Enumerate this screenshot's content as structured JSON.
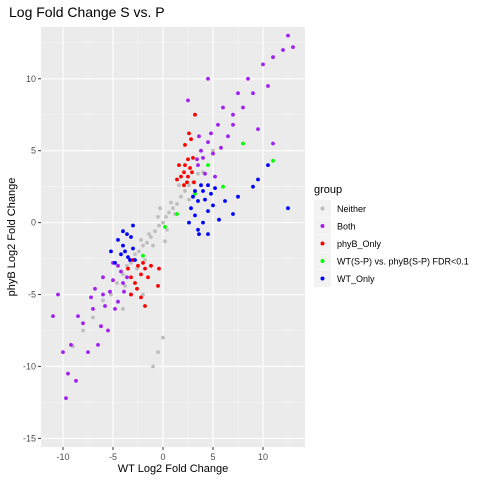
{
  "chart_data": {
    "type": "scatter",
    "title": "Log Fold Change S vs. P",
    "xlabel": "WT Log2 Fold Change",
    "ylabel": "phyB Log2 Fold Change",
    "xlim": [
      -12.2,
      14.2
    ],
    "ylim": [
      -15.6,
      13.6
    ],
    "xticks": [
      -10,
      -5,
      0,
      5,
      10
    ],
    "yticks": [
      -15,
      -10,
      -5,
      0,
      5,
      10
    ],
    "grid": true,
    "legend": {
      "title": "group",
      "position": "right"
    },
    "series": [
      {
        "name": "Neither",
        "color": "#bebebe",
        "points": [
          [
            -9,
            -8.6
          ],
          [
            -8,
            -7.5
          ],
          [
            -7,
            -6.6
          ],
          [
            -6,
            -5.4
          ],
          [
            -5.2,
            -5
          ],
          [
            -4.6,
            -4.2
          ],
          [
            -4,
            -3.6
          ],
          [
            -3.6,
            -3
          ],
          [
            -3.2,
            -2.8
          ],
          [
            -2.8,
            -2.2
          ],
          [
            -2.4,
            -2
          ],
          [
            -2,
            -1.6
          ],
          [
            -1.6,
            -1.4
          ],
          [
            -1.2,
            -1
          ],
          [
            -0.8,
            -0.6
          ],
          [
            -0.4,
            -0.2
          ],
          [
            0,
            0
          ],
          [
            0.3,
            0.4
          ],
          [
            0.6,
            0.7
          ],
          [
            1,
            1
          ],
          [
            1.4,
            1.3
          ],
          [
            1.8,
            1.8
          ],
          [
            2.2,
            2.2
          ],
          [
            2.6,
            2.6
          ],
          [
            3,
            2.8
          ],
          [
            3.5,
            3.4
          ],
          [
            -1,
            -1.6
          ],
          [
            -1.4,
            -0.8
          ],
          [
            0.8,
            1.4
          ],
          [
            1.2,
            0.6
          ],
          [
            -0.5,
            0.4
          ],
          [
            0.4,
            -0.5
          ],
          [
            0,
            -8
          ],
          [
            -0.5,
            -9
          ],
          [
            -1,
            -10
          ],
          [
            -4,
            -6
          ],
          [
            -2,
            -5
          ],
          [
            4,
            3.5
          ],
          [
            5,
            5
          ],
          [
            -3.8,
            -4.4
          ],
          [
            -2.6,
            -3.2
          ],
          [
            2.6,
            1.6
          ],
          [
            1.6,
            2.6
          ],
          [
            -0.3,
            1
          ],
          [
            0.2,
            -1.3
          ],
          [
            -1.8,
            -2.6
          ],
          [
            -2.2,
            -1.2
          ]
        ]
      },
      {
        "name": "Both",
        "color": "#a020f0",
        "points": [
          [
            -11,
            -6.5
          ],
          [
            -10,
            -9
          ],
          [
            -9.5,
            -10.5
          ],
          [
            -10.5,
            -5
          ],
          [
            -9.7,
            -12.2
          ],
          [
            -8.5,
            -6.5
          ],
          [
            -8,
            -7
          ],
          [
            -7.5,
            -9
          ],
          [
            -7.2,
            -5.2
          ],
          [
            -7,
            -6
          ],
          [
            -6.5,
            -8.5
          ],
          [
            -6.2,
            -7.2
          ],
          [
            -6,
            -5
          ],
          [
            -5.8,
            -5.8
          ],
          [
            -5.5,
            -7.5
          ],
          [
            -5.3,
            -4.8
          ],
          [
            -5,
            -4
          ],
          [
            -4.8,
            -6
          ],
          [
            -4.5,
            -5.5
          ],
          [
            -4.2,
            -3.4
          ],
          [
            -3.9,
            -4.8
          ],
          [
            -3.6,
            -3.8
          ],
          [
            -4.5,
            -3
          ],
          [
            -6,
            -3.8
          ],
          [
            -5,
            -2.8
          ],
          [
            -4,
            -4.2
          ],
          [
            -8.7,
            -11
          ],
          [
            -9.2,
            -8.5
          ],
          [
            -3.2,
            -5
          ],
          [
            -6.8,
            -4.6
          ],
          [
            3.5,
            4
          ],
          [
            3.8,
            5
          ],
          [
            4,
            4.5
          ],
          [
            4.2,
            3.4
          ],
          [
            4.5,
            5.6
          ],
          [
            4.8,
            6.2
          ],
          [
            5,
            4.8
          ],
          [
            5.2,
            3.2
          ],
          [
            5.5,
            6.8
          ],
          [
            6,
            8
          ],
          [
            6.5,
            6
          ],
          [
            7,
            7.5
          ],
          [
            7.5,
            9
          ],
          [
            8,
            8
          ],
          [
            8.5,
            10
          ],
          [
            9,
            9
          ],
          [
            9.5,
            6.5
          ],
          [
            10,
            11
          ],
          [
            10.5,
            9.5
          ],
          [
            11,
            11.5
          ],
          [
            12,
            12
          ],
          [
            12.5,
            13
          ],
          [
            13,
            12.2
          ],
          [
            3.6,
            6
          ],
          [
            3.4,
            4.4
          ],
          [
            2.5,
            8.5
          ],
          [
            4.5,
            10
          ],
          [
            11,
            5.5
          ],
          [
            7,
            6.8
          ],
          [
            5.8,
            5.2
          ]
        ]
      },
      {
        "name": "phyB_Only",
        "color": "#ff0000",
        "points": [
          [
            -3.5,
            -3.2
          ],
          [
            -3.2,
            -3.8
          ],
          [
            -3,
            -2.6
          ],
          [
            -2.8,
            -4.2
          ],
          [
            -2.5,
            -3
          ],
          [
            -2.2,
            -3.6
          ],
          [
            -2,
            -2.8
          ],
          [
            -1.8,
            -3.2
          ],
          [
            -2.6,
            -4.6
          ],
          [
            -1.5,
            -3.8
          ],
          [
            -2.2,
            -5.2
          ],
          [
            -1.2,
            -3
          ],
          [
            -0.5,
            -4.4
          ],
          [
            -0.4,
            -3.2
          ],
          [
            -1.8,
            -5.8
          ],
          [
            -3.2,
            -5
          ],
          [
            2.1,
            2.6
          ],
          [
            2.1,
            3.5
          ],
          [
            2.2,
            4
          ],
          [
            2.4,
            2.8
          ],
          [
            2.5,
            3.2
          ],
          [
            2.5,
            4.4
          ],
          [
            2.7,
            3.8
          ],
          [
            2.9,
            3.5
          ],
          [
            3,
            4.5
          ],
          [
            2.2,
            5.4
          ],
          [
            3.1,
            2.8
          ],
          [
            1.8,
            3.2
          ],
          [
            1.6,
            4
          ],
          [
            1.4,
            3
          ],
          [
            2.8,
            5.8
          ],
          [
            3.2,
            7.5
          ],
          [
            2.6,
            6.2
          ]
        ]
      },
      {
        "name": "WT(S-P) vs. phyB(S-P) FDR<0.1",
        "color": "#00ff00",
        "points": [
          [
            -2,
            -2.3
          ],
          [
            0.2,
            -0.3
          ],
          [
            1.4,
            0.6
          ],
          [
            3.2,
            2
          ],
          [
            4.5,
            4
          ],
          [
            6,
            2.5
          ],
          [
            8,
            5.5
          ],
          [
            11,
            4.3
          ]
        ]
      },
      {
        "name": "WT_Only",
        "color": "#0000ff",
        "points": [
          [
            -4.2,
            -2.2
          ],
          [
            -4,
            -1.6
          ],
          [
            -3.8,
            -2
          ],
          [
            -3.5,
            -2.4
          ],
          [
            -4.5,
            -1.2
          ],
          [
            -3.2,
            -1
          ],
          [
            -3,
            -1.8
          ],
          [
            -2.8,
            -2.6
          ],
          [
            -3.6,
            -0.8
          ],
          [
            -4.8,
            -2.8
          ],
          [
            -4,
            -0.6
          ],
          [
            -3.3,
            -2.6
          ],
          [
            -5.2,
            -2
          ],
          [
            -3,
            -0.2
          ],
          [
            2.8,
            1
          ],
          [
            3,
            1.8
          ],
          [
            3.2,
            2.2
          ],
          [
            3.5,
            1.5
          ],
          [
            3.8,
            2.6
          ],
          [
            4,
            2.2
          ],
          [
            4.2,
            1.6
          ],
          [
            4.5,
            2.6
          ],
          [
            4.8,
            2
          ],
          [
            5,
            1.2
          ],
          [
            5.2,
            2.4
          ],
          [
            3.2,
            0.5
          ],
          [
            3.5,
            -0.5
          ],
          [
            4,
            0
          ],
          [
            4.5,
            0.8
          ],
          [
            5.6,
            0.2
          ],
          [
            6.2,
            1.5
          ],
          [
            7,
            0.6
          ],
          [
            7.5,
            1.8
          ],
          [
            9.5,
            3
          ],
          [
            10.5,
            4
          ],
          [
            9,
            2.5
          ],
          [
            12.5,
            1
          ],
          [
            3.6,
            -0.8
          ],
          [
            2.6,
            0
          ],
          [
            4.5,
            -0.8
          ]
        ]
      }
    ]
  }
}
